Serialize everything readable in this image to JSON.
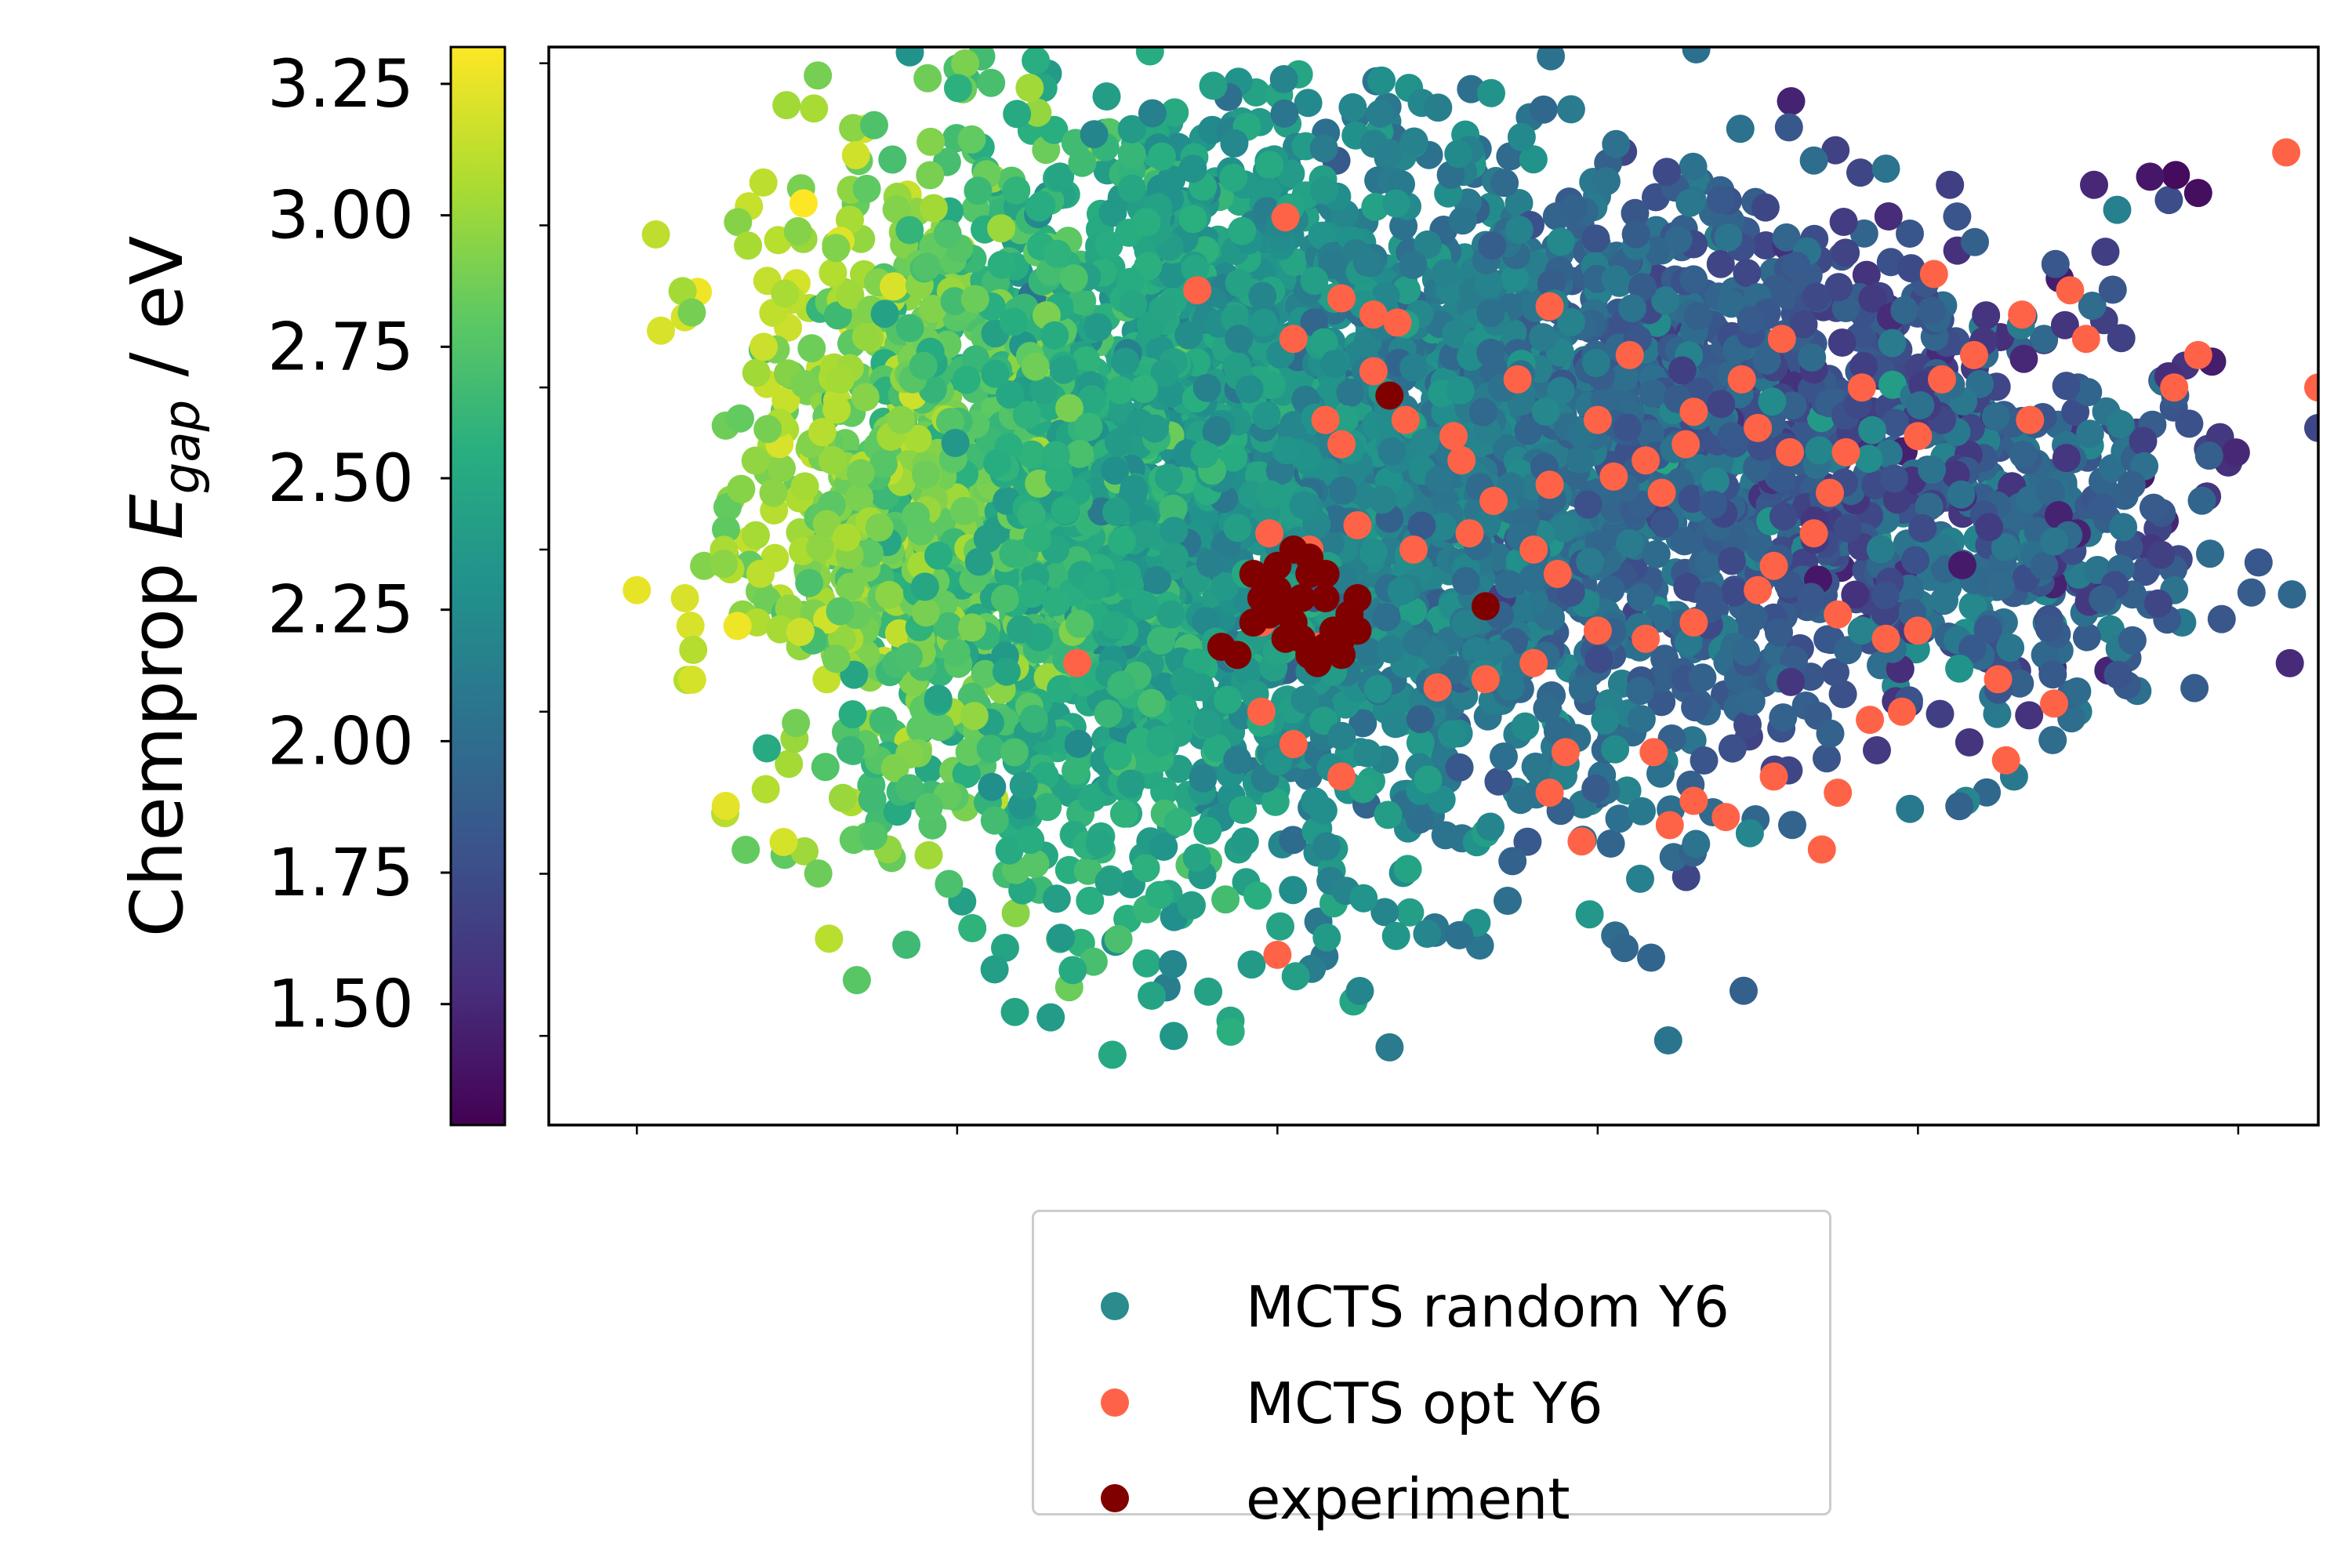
{
  "chart_data": {
    "type": "scatter",
    "title": "",
    "xlabel": "",
    "ylabel": "",
    "x_ticks_labeled": false,
    "xlim": [
      -0.55,
      10.5
    ],
    "ylim": [
      -0.55,
      6.1
    ],
    "colorbar": {
      "label_prefix": "Chemprop ",
      "label_symbol": "E",
      "label_subscript": "gap",
      "label_suffix": " / eV",
      "range": [
        1.27,
        3.32
      ],
      "ticks": [
        "1.50",
        "1.75",
        "2.00",
        "2.25",
        "2.50",
        "2.75",
        "3.00",
        "3.25"
      ],
      "tick_values": [
        1.5,
        1.75,
        2.0,
        2.25,
        2.5,
        2.75,
        3.0,
        3.25
      ],
      "colormap": "viridis"
    },
    "legend": {
      "placement": "below"
    },
    "series": [
      {
        "name": "MCTS random Y6",
        "color": "#2a8c8c",
        "colored_by": "Chemprop Egap",
        "n_points_approx": 5000,
        "clusters": [
          {
            "x": 1.7,
            "y": 3.4,
            "sx": 0.55,
            "sy": 1.05,
            "e": 2.9,
            "n": 600
          },
          {
            "x": 2.8,
            "y": 3.2,
            "sx": 0.7,
            "sy": 1.2,
            "e": 2.55,
            "n": 1100
          },
          {
            "x": 4.0,
            "y": 3.5,
            "sx": 0.8,
            "sy": 1.15,
            "e": 2.3,
            "n": 1300
          },
          {
            "x": 5.6,
            "y": 3.4,
            "sx": 0.85,
            "sy": 1.0,
            "e": 2.05,
            "n": 1100
          },
          {
            "x": 7.3,
            "y": 3.6,
            "sx": 0.8,
            "sy": 0.8,
            "e": 1.8,
            "n": 600
          },
          {
            "x": 8.6,
            "y": 3.2,
            "sx": 0.7,
            "sy": 0.6,
            "e": 2.0,
            "n": 300
          }
        ],
        "outliers": [
          {
            "x": 0.0,
            "y": 2.75,
            "e": 3.25
          },
          {
            "x": 0.3,
            "y": 2.7,
            "e": 3.2
          },
          {
            "x": 0.15,
            "y": 4.35,
            "e": 3.2
          },
          {
            "x": 1.2,
            "y": 0.6,
            "e": 3.1
          },
          {
            "x": 2.7,
            "y": 0.3,
            "e": 2.85
          },
          {
            "x": 2.05,
            "y": 6.0,
            "e": 2.9
          },
          {
            "x": 1.35,
            "y": 5.6,
            "e": 2.95
          },
          {
            "x": 5.95,
            "y": 0.75,
            "e": 2.35
          },
          {
            "x": 7.35,
            "y": 5.4,
            "e": 2.0
          },
          {
            "x": 7.8,
            "y": 5.35,
            "e": 2.05
          },
          {
            "x": 8.2,
            "y": 5.25,
            "e": 1.65
          },
          {
            "x": 9.1,
            "y": 5.25,
            "e": 1.5
          },
          {
            "x": 9.45,
            "y": 5.3,
            "e": 1.4
          },
          {
            "x": 9.75,
            "y": 5.2,
            "e": 1.35
          },
          {
            "x": 10.5,
            "y": 3.75,
            "e": 1.7
          },
          {
            "x": 9.6,
            "y": 2.75,
            "e": 2.05
          },
          {
            "x": 9.65,
            "y": 2.55,
            "e": 2.1
          },
          {
            "x": 9.0,
            "y": 2.0,
            "e": 2.1
          },
          {
            "x": 8.3,
            "y": 1.45,
            "e": 2.2
          },
          {
            "x": 8.6,
            "y": 1.6,
            "e": 2.1
          },
          {
            "x": 6.95,
            "y": 1.25,
            "e": 2.2
          },
          {
            "x": 7.95,
            "y": 1.4,
            "e": 2.1
          },
          {
            "x": 9.0,
            "y": 4.0,
            "e": 1.85
          },
          {
            "x": 8.45,
            "y": 3.7,
            "e": 1.9
          }
        ]
      },
      {
        "name": "MCTS opt Y6",
        "color": "#ff6347",
        "points": [
          [
            4.05,
            5.05
          ],
          [
            3.5,
            4.6
          ],
          [
            4.1,
            4.3
          ],
          [
            4.4,
            4.55
          ],
          [
            4.6,
            4.45
          ],
          [
            4.75,
            4.4
          ],
          [
            4.3,
            3.8
          ],
          [
            4.4,
            3.65
          ],
          [
            4.6,
            4.1
          ],
          [
            4.8,
            3.8
          ],
          [
            5.1,
            3.7
          ],
          [
            5.15,
            3.55
          ],
          [
            5.7,
            4.5
          ],
          [
            5.5,
            4.05
          ],
          [
            5.7,
            3.4
          ],
          [
            6.2,
            4.2
          ],
          [
            6.0,
            3.8
          ],
          [
            6.1,
            3.45
          ],
          [
            6.4,
            3.35
          ],
          [
            6.3,
            3.55
          ],
          [
            6.55,
            3.65
          ],
          [
            6.6,
            3.85
          ],
          [
            7.15,
            4.3
          ],
          [
            7.2,
            3.6
          ],
          [
            6.9,
            4.05
          ],
          [
            7.0,
            3.75
          ],
          [
            7.45,
            3.35
          ],
          [
            7.55,
            3.6
          ],
          [
            8.0,
            3.7
          ],
          [
            8.7,
            3.8
          ],
          [
            8.65,
            4.45
          ],
          [
            8.15,
            4.05
          ],
          [
            9.05,
            4.3
          ],
          [
            8.95,
            4.6
          ],
          [
            8.1,
            4.7
          ],
          [
            9.6,
            4.0
          ],
          [
            9.75,
            4.2
          ],
          [
            10.3,
            5.45
          ],
          [
            10.5,
            4.0
          ],
          [
            4.2,
            3.0
          ],
          [
            4.5,
            3.15
          ],
          [
            4.85,
            3.0
          ],
          [
            5.2,
            3.1
          ],
          [
            5.35,
            3.3
          ],
          [
            5.6,
            3.0
          ],
          [
            5.75,
            2.85
          ],
          [
            6.0,
            2.5
          ],
          [
            6.3,
            2.45
          ],
          [
            6.6,
            2.55
          ],
          [
            7.0,
            2.75
          ],
          [
            7.5,
            2.6
          ],
          [
            7.8,
            2.45
          ],
          [
            8.0,
            2.5
          ],
          [
            8.5,
            2.2
          ],
          [
            8.85,
            2.05
          ],
          [
            2.75,
            2.3
          ],
          [
            3.9,
            2.55
          ],
          [
            4.25,
            2.4
          ],
          [
            3.9,
            2.0
          ],
          [
            4.1,
            1.8
          ],
          [
            4.4,
            1.6
          ],
          [
            5.0,
            2.15
          ],
          [
            5.3,
            2.2
          ],
          [
            5.6,
            2.3
          ],
          [
            5.8,
            1.75
          ],
          [
            6.35,
            1.75
          ],
          [
            6.6,
            1.45
          ],
          [
            7.1,
            1.6
          ],
          [
            7.4,
            1.15
          ],
          [
            7.5,
            1.5
          ],
          [
            7.9,
            2.0
          ],
          [
            8.55,
            1.7
          ],
          [
            5.7,
            1.5
          ],
          [
            5.9,
            1.2
          ],
          [
            6.45,
            1.3
          ],
          [
            6.8,
            1.35
          ],
          [
            7.1,
            2.9
          ],
          [
            7.35,
            3.1
          ],
          [
            7.65,
            4.0
          ],
          [
            8.35,
            4.2
          ],
          [
            7.7,
            1.95
          ],
          [
            4.0,
            0.5
          ],
          [
            3.95,
            3.1
          ]
        ]
      },
      {
        "name": "experiment",
        "color": "#800000",
        "points": [
          [
            3.65,
            2.4
          ],
          [
            3.75,
            2.35
          ],
          [
            3.85,
            2.55
          ],
          [
            3.9,
            2.7
          ],
          [
            3.95,
            2.8
          ],
          [
            3.85,
            2.85
          ],
          [
            4.0,
            2.75
          ],
          [
            4.05,
            2.65
          ],
          [
            4.1,
            2.55
          ],
          [
            4.15,
            2.45
          ],
          [
            4.2,
            2.35
          ],
          [
            4.25,
            2.3
          ],
          [
            4.3,
            2.4
          ],
          [
            4.35,
            2.5
          ],
          [
            4.4,
            2.45
          ],
          [
            4.15,
            2.7
          ],
          [
            4.2,
            2.85
          ],
          [
            4.3,
            2.7
          ],
          [
            4.45,
            2.6
          ],
          [
            4.0,
            2.9
          ],
          [
            4.1,
            3.0
          ],
          [
            4.2,
            2.95
          ],
          [
            4.3,
            2.85
          ],
          [
            4.5,
            2.7
          ],
          [
            4.4,
            2.35
          ],
          [
            4.5,
            2.5
          ],
          [
            3.95,
            2.6
          ],
          [
            4.05,
            2.45
          ],
          [
            4.7,
            3.95
          ],
          [
            5.3,
            2.65
          ]
        ]
      }
    ]
  }
}
